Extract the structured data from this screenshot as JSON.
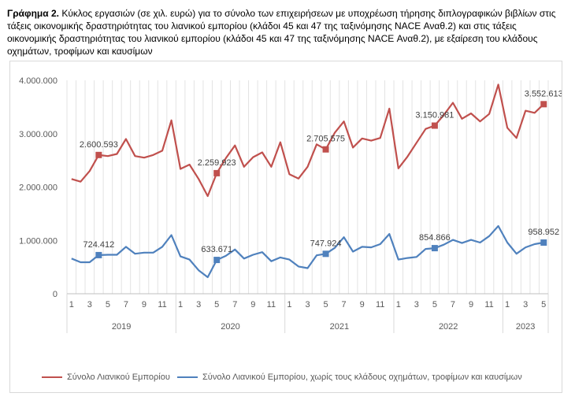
{
  "caption": {
    "label": "Γράφημα 2.",
    "text": "Κύκλος εργασιών (σε χιλ. ευρώ) για το σύνολο των επιχειρήσεων με υποχρέωση τήρησης διπλογραφικών βιβλίων στις τάξεις οικονομικής δραστηριότητας του λιανικού εμπορίου (κλάδοι 45 και 47 της ταξινόμησης NACE Αναθ.2) και στις τάξεις οικονομικής δραστηριότητας του λιανικού εμπορίου (κλάδοι 45 και 47 της ταξινόμησης NACE Αναθ.2), με εξαίρεση του κλάδους οχημάτων, τροφίμων και καυσίμων"
  },
  "chart_data": {
    "type": "line",
    "title": "",
    "xlabel": "",
    "ylabel": "",
    "ylim": [
      0,
      4000000
    ],
    "yticks": [
      "0",
      "1.000.000",
      "2.000.000",
      "3.000.000",
      "4.000.000"
    ],
    "grid": "vertical",
    "legend_position": "bottom",
    "x_month_ticks": [
      "1",
      "3",
      "5",
      "7",
      "9",
      "11",
      "1",
      "3",
      "5",
      "7",
      "9",
      "11",
      "1",
      "3",
      "5",
      "7",
      "9",
      "11",
      "1",
      "3",
      "5",
      "7",
      "9",
      "11",
      "1",
      "3",
      "5"
    ],
    "years": [
      {
        "label": "2019",
        "months": 12
      },
      {
        "label": "2020",
        "months": 12
      },
      {
        "label": "2021",
        "months": 12
      },
      {
        "label": "2022",
        "months": 12
      },
      {
        "label": "2023",
        "months": 5
      }
    ],
    "series": [
      {
        "name": "Σύνολο Λιανικού Εμπορίου",
        "color": "#c0504d",
        "values": [
          2150000,
          2100000,
          2300000,
          2600593,
          2580000,
          2620000,
          2900000,
          2580000,
          2550000,
          2600000,
          2680000,
          3250000,
          2340000,
          2420000,
          2150000,
          1830000,
          2259923,
          2540000,
          2780000,
          2380000,
          2560000,
          2650000,
          2380000,
          2840000,
          2240000,
          2160000,
          2380000,
          2800000,
          2705575,
          3020000,
          3230000,
          2740000,
          2910000,
          2870000,
          2920000,
          3470000,
          2350000,
          2570000,
          2830000,
          3090000,
          3150981,
          3350000,
          3580000,
          3280000,
          3380000,
          3230000,
          3370000,
          3920000,
          3110000,
          2920000,
          3430000,
          3390000,
          3552613
        ],
        "labeled": [
          {
            "index": 3,
            "text": "2.600.593"
          },
          {
            "index": 16,
            "text": "2.259.923"
          },
          {
            "index": 28,
            "text": "2.705.575"
          },
          {
            "index": 40,
            "text": "3.150.981"
          },
          {
            "index": 52,
            "text": "3.552.613"
          }
        ]
      },
      {
        "name": "Σύνολο Λιανικού Εμπορίου, χωρίς τους κλάδους οχημάτων, τροφίμων και καυσίμων",
        "color": "#4f81bd",
        "values": [
          660000,
          590000,
          590000,
          724412,
          730000,
          730000,
          880000,
          750000,
          770000,
          770000,
          880000,
          1100000,
          700000,
          640000,
          440000,
          310000,
          633671,
          710000,
          830000,
          660000,
          730000,
          780000,
          610000,
          680000,
          640000,
          510000,
          480000,
          720000,
          747924,
          860000,
          1060000,
          790000,
          880000,
          870000,
          930000,
          1120000,
          640000,
          670000,
          690000,
          840000,
          854866,
          920000,
          1010000,
          950000,
          1010000,
          960000,
          1080000,
          1270000,
          960000,
          750000,
          870000,
          930000,
          958952
        ],
        "labeled": [
          {
            "index": 3,
            "text": "724.412"
          },
          {
            "index": 16,
            "text": "633.671"
          },
          {
            "index": 28,
            "text": "747.924"
          },
          {
            "index": 40,
            "text": "854.866"
          },
          {
            "index": 52,
            "text": "958.952"
          }
        ]
      }
    ]
  }
}
